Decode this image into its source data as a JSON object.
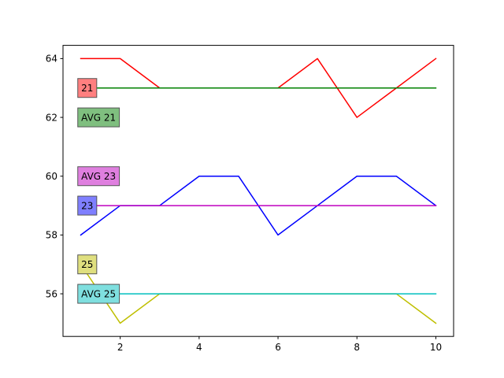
{
  "chart_data": {
    "type": "line",
    "x": [
      1,
      2,
      3,
      4,
      5,
      6,
      7,
      8,
      9,
      10
    ],
    "xlim": [
      0.55,
      10.45
    ],
    "ylim": [
      54.55,
      64.45
    ],
    "xticks": [
      2,
      4,
      6,
      8,
      10
    ],
    "yticks": [
      56,
      58,
      60,
      62,
      64
    ],
    "grid": false,
    "series": [
      {
        "values": [
          64,
          64,
          63,
          63,
          63,
          63,
          64,
          62,
          63,
          64
        ],
        "color": "#ff0000"
      },
      {
        "values": [
          58,
          59,
          59,
          60,
          60,
          58,
          59,
          60,
          60,
          59
        ],
        "color": "#0000ff"
      },
      {
        "values": [
          57,
          55,
          56,
          56,
          56,
          56,
          56,
          56,
          56,
          55
        ],
        "color": "#bfbf00"
      },
      {
        "values": [
          63,
          63,
          63,
          63,
          63,
          63,
          63,
          63,
          63,
          63
        ],
        "color": "#008000"
      },
      {
        "values": [
          59,
          59,
          59,
          59,
          59,
          59,
          59,
          59,
          59,
          59
        ],
        "color": "#bf00bf"
      },
      {
        "values": [
          56,
          56,
          56,
          56,
          56,
          56,
          56,
          56,
          56,
          56
        ],
        "color": "#00bfbf"
      }
    ],
    "annotations": [
      {
        "text": "21",
        "x": 1,
        "y": 63,
        "color": "#ff7f7f"
      },
      {
        "text": "AVG 21",
        "x": 1,
        "y": 62,
        "color": "#7fbf7f"
      },
      {
        "text": "AVG 23",
        "x": 1,
        "y": 60,
        "color": "#df7fdf"
      },
      {
        "text": "23",
        "x": 1,
        "y": 59,
        "color": "#7f7fff"
      },
      {
        "text": "25",
        "x": 1,
        "y": 57,
        "color": "#dfdf7f"
      },
      {
        "text": "AVG 25",
        "x": 1,
        "y": 56,
        "color": "#7fdfdf"
      }
    ]
  }
}
